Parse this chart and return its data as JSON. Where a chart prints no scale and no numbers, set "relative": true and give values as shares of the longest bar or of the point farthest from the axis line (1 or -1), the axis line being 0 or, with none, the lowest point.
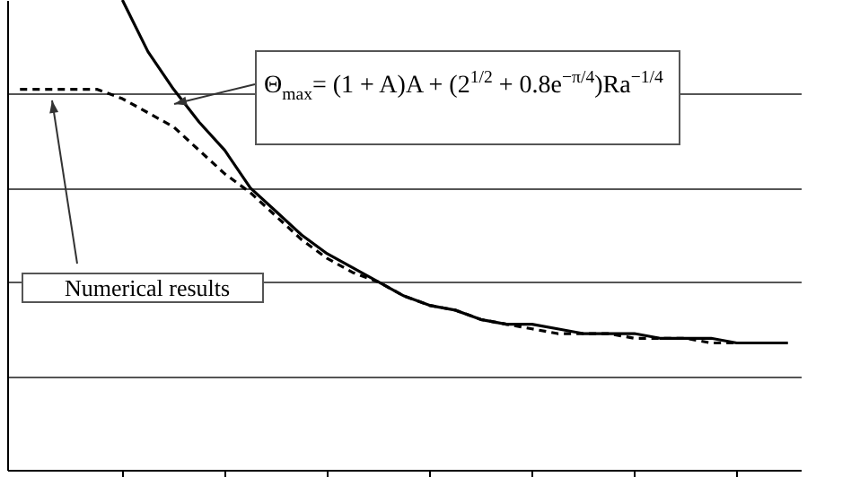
{
  "chart_data": {
    "type": "line",
    "relative": true,
    "grid": "y",
    "categories": [
      null,
      null,
      null,
      null,
      null,
      null,
      null,
      null,
      null,
      null,
      null,
      null,
      null,
      null,
      null,
      null,
      null,
      null,
      null,
      null,
      null,
      null,
      null,
      null,
      null,
      null,
      null,
      null,
      null,
      null,
      null
    ],
    "series": [
      {
        "color": "#000000",
        "line_style": "dashed",
        "values": [
          0.81,
          0.81,
          0.81,
          0.81,
          0.79,
          0.76,
          0.73,
          0.68,
          0.63,
          0.59,
          0.54,
          0.49,
          0.45,
          0.42,
          0.4,
          0.37,
          0.35,
          0.34,
          0.32,
          0.31,
          0.3,
          0.29,
          0.29,
          0.29,
          0.28,
          0.28,
          0.28,
          0.27,
          0.27,
          0.27,
          0.27
        ]
      },
      {
        "color": "#000000",
        "line_style": "solid",
        "values": [
          null,
          null,
          null,
          null,
          1,
          0.89,
          0.81,
          0.74,
          0.68,
          0.6,
          0.55,
          0.5,
          0.46,
          0.43,
          0.4,
          0.37,
          0.35,
          0.34,
          0.32,
          0.31,
          0.31,
          0.3,
          0.29,
          0.29,
          0.29,
          0.28,
          0.28,
          0.28,
          0.27,
          0.27,
          0.27
        ]
      }
    ],
    "annotations": [
      "Θ$_{max}$= (1 + A)A + (2$^{1/2}$ + 0.8e$^{−π/4}$)Ra$^{−1/4}$",
      "Numerical results"
    ]
  }
}
